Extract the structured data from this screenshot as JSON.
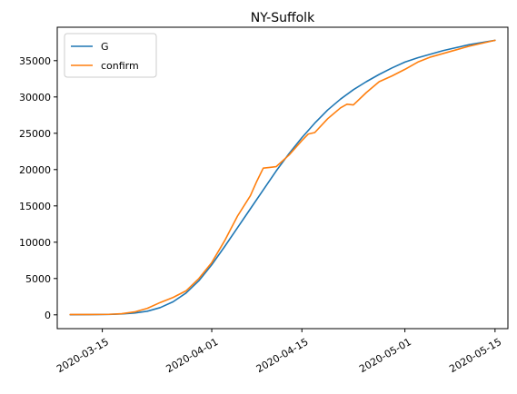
{
  "chart_data": {
    "type": "line",
    "title": "NY-Suffolk",
    "xlabel": "",
    "ylabel": "",
    "x_axis_type": "date",
    "xlim": [
      "2020-03-08",
      "2020-05-17"
    ],
    "ylim": [
      -1900,
      39600
    ],
    "x_ticks": [
      "2020-03-15",
      "2020-04-01",
      "2020-04-15",
      "2020-05-01",
      "2020-05-15"
    ],
    "y_ticks": [
      0,
      5000,
      10000,
      15000,
      20000,
      25000,
      30000,
      35000
    ],
    "y_tick_labels": [
      "0",
      "5000",
      "10000",
      "15000",
      "20000",
      "25000",
      "30000",
      "35000"
    ],
    "grid": false,
    "legend_position": "top-left",
    "series": [
      {
        "name": "G",
        "color": "#1f77b4",
        "x": [
          "2020-03-10",
          "2020-03-13",
          "2020-03-16",
          "2020-03-18",
          "2020-03-20",
          "2020-03-22",
          "2020-03-24",
          "2020-03-26",
          "2020-03-28",
          "2020-03-30",
          "2020-04-01",
          "2020-04-03",
          "2020-04-05",
          "2020-04-07",
          "2020-04-09",
          "2020-04-11",
          "2020-04-13",
          "2020-04-15",
          "2020-04-17",
          "2020-04-19",
          "2020-04-21",
          "2020-04-23",
          "2020-04-25",
          "2020-04-27",
          "2020-04-29",
          "2020-05-01",
          "2020-05-03",
          "2020-05-05",
          "2020-05-07",
          "2020-05-09",
          "2020-05-11",
          "2020-05-13",
          "2020-05-15"
        ],
        "values": [
          20,
          30,
          60,
          120,
          250,
          500,
          1000,
          1800,
          3000,
          4700,
          6900,
          9400,
          12000,
          14600,
          17200,
          19800,
          22200,
          24400,
          26400,
          28200,
          29700,
          31000,
          32100,
          33100,
          34000,
          34800,
          35400,
          35900,
          36400,
          36800,
          37200,
          37500,
          37800
        ]
      },
      {
        "name": "confirm",
        "color": "#ff7f0e",
        "x": [
          "2020-03-10",
          "2020-03-13",
          "2020-03-16",
          "2020-03-18",
          "2020-03-20",
          "2020-03-22",
          "2020-03-24",
          "2020-03-26",
          "2020-03-28",
          "2020-03-30",
          "2020-04-01",
          "2020-04-03",
          "2020-04-05",
          "2020-04-07",
          "2020-04-08",
          "2020-04-09",
          "2020-04-10",
          "2020-04-11",
          "2020-04-13",
          "2020-04-15",
          "2020-04-16",
          "2020-04-17",
          "2020-04-19",
          "2020-04-21",
          "2020-04-22",
          "2020-04-23",
          "2020-04-25",
          "2020-04-27",
          "2020-04-29",
          "2020-05-01",
          "2020-05-03",
          "2020-05-05",
          "2020-05-07",
          "2020-05-09",
          "2020-05-11",
          "2020-05-13",
          "2020-05-15"
        ],
        "values": [
          40,
          50,
          70,
          150,
          400,
          900,
          1700,
          2400,
          3300,
          5000,
          7200,
          10200,
          13600,
          16400,
          18400,
          20200,
          20300,
          20400,
          22000,
          24000,
          24900,
          25100,
          27000,
          28500,
          29000,
          28900,
          30600,
          32100,
          32900,
          33800,
          34800,
          35500,
          36000,
          36500,
          37000,
          37400,
          37800
        ]
      }
    ]
  }
}
